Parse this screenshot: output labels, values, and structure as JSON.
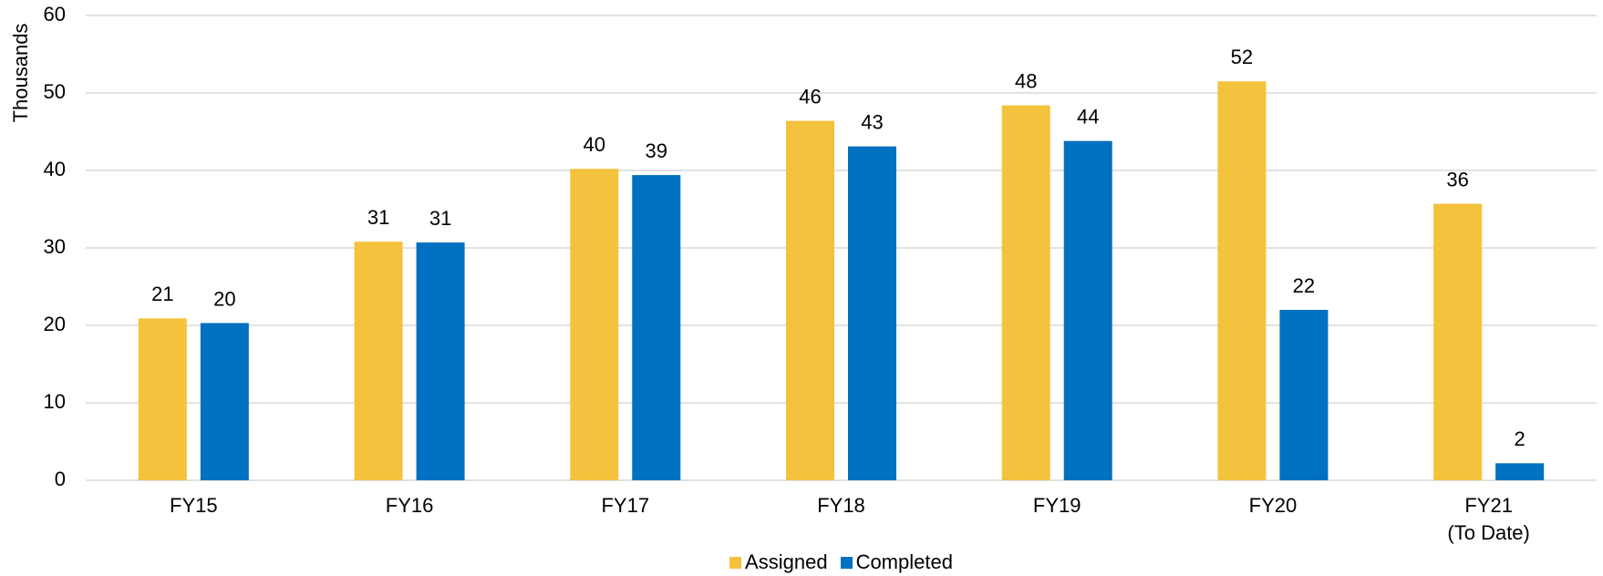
{
  "chart_data": {
    "type": "bar",
    "ylabel": "Thousands",
    "categories": [
      "FY15",
      "FY16",
      "FY17",
      "FY18",
      "FY19",
      "FY20",
      "FY21\n(To Date)"
    ],
    "series": [
      {
        "name": "Assigned",
        "color": "#f4c23c",
        "values": [
          20.9,
          30.8,
          40.2,
          46.4,
          48.4,
          51.5,
          35.7
        ],
        "value_labels": [
          "21",
          "31",
          "40",
          "46",
          "48",
          "52",
          "36"
        ]
      },
      {
        "name": "Completed",
        "color": "#0070c0",
        "values": [
          20.3,
          30.7,
          39.4,
          43.1,
          43.8,
          22.0,
          2.2
        ],
        "value_labels": [
          "20",
          "31",
          "39",
          "43",
          "44",
          "22",
          "2"
        ]
      }
    ],
    "ylim": [
      0,
      60
    ],
    "yticks": [
      0,
      10,
      20,
      30,
      40,
      50,
      60
    ],
    "grid": true,
    "legend": "bottom"
  }
}
